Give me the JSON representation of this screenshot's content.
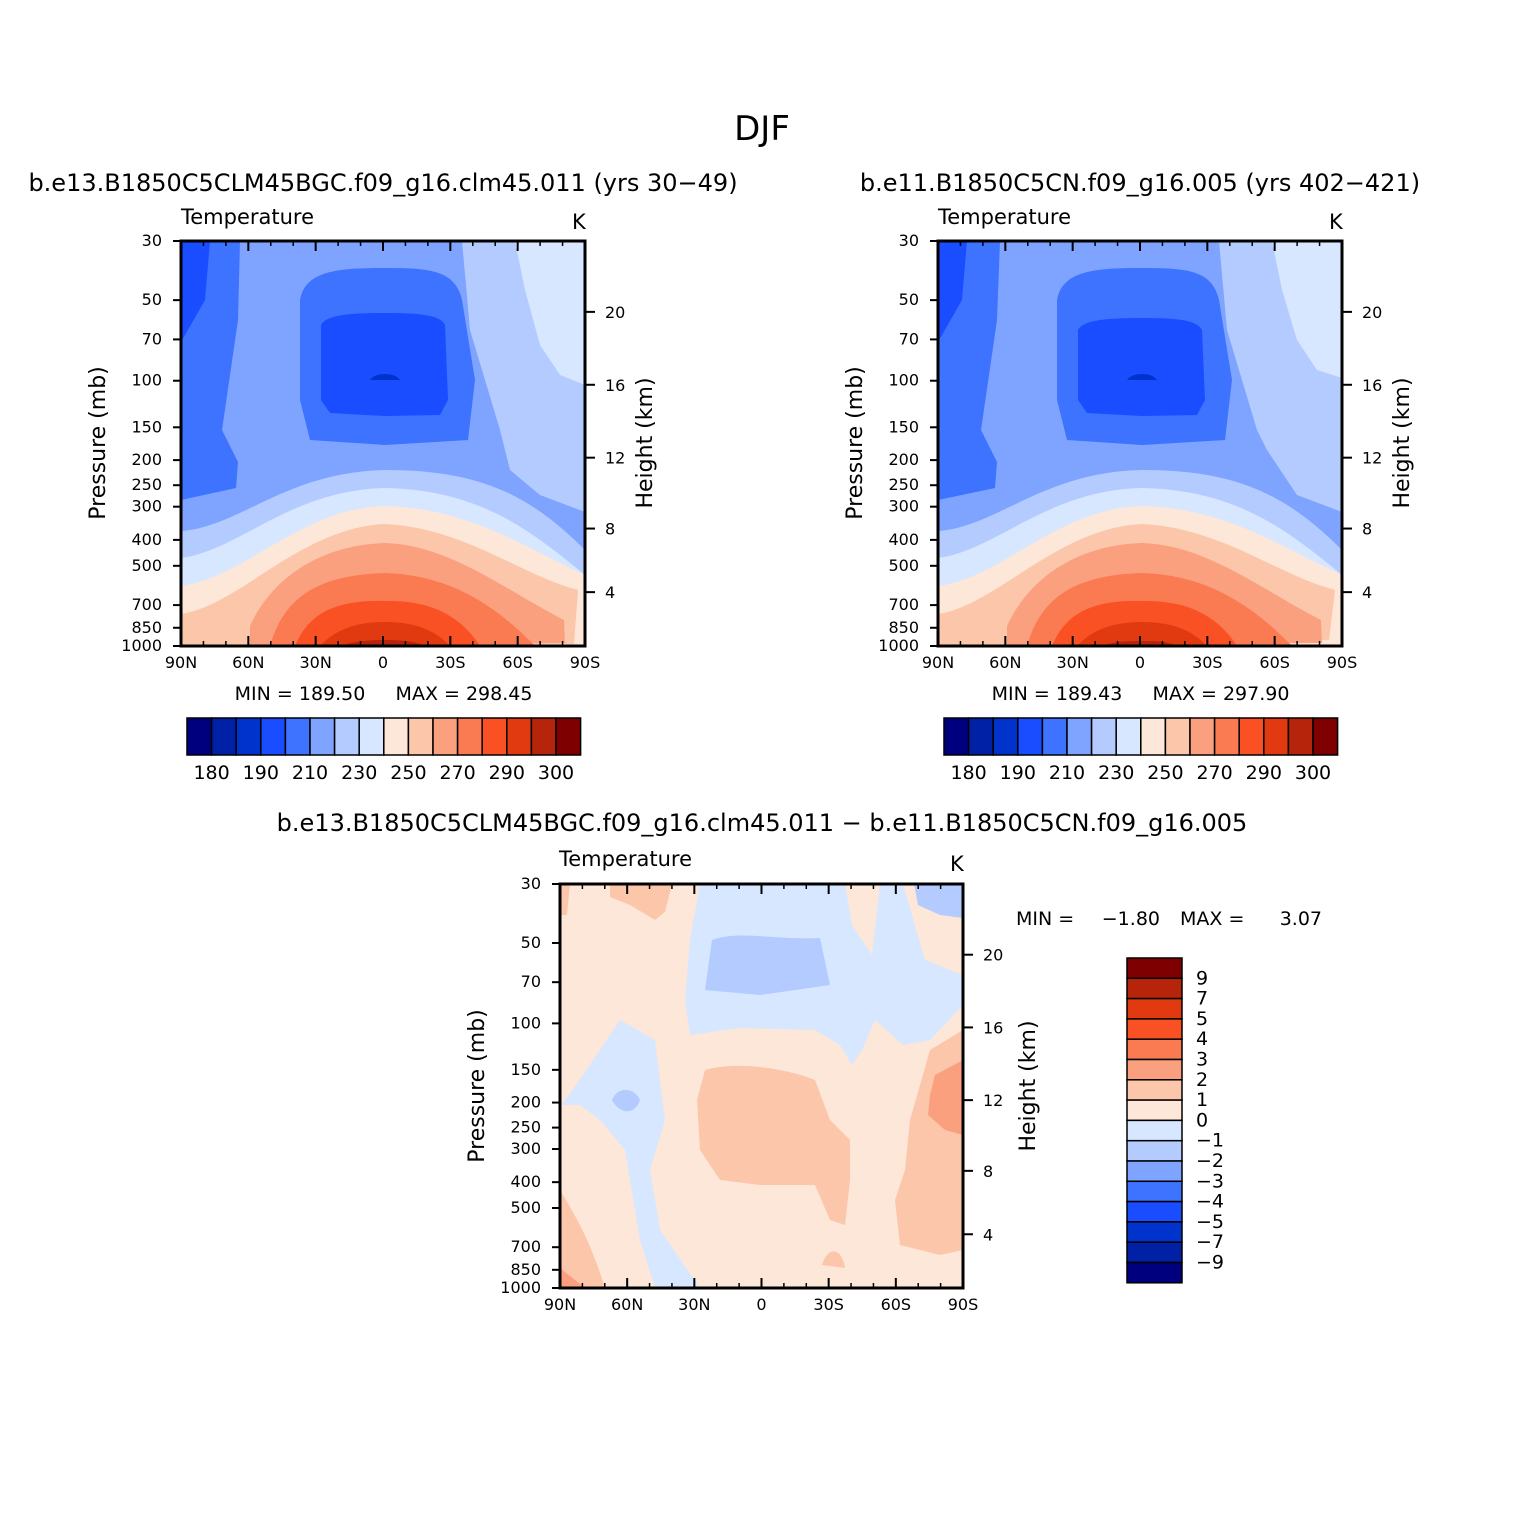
{
  "figure": {
    "title": "DJF",
    "palette_label": [
      "#00007f",
      "#0021a6",
      "#0033cc",
      "#1a4dff",
      "#3d73ff",
      "#7ea4ff",
      "#b3cbff",
      "#d6e7ff",
      "#fde7d8",
      "#fcc6ab",
      "#fba07e",
      "#fa7b52",
      "#fa5124",
      "#e23a10",
      "#b6240b",
      "#7f0000"
    ]
  },
  "chart_data": [
    {
      "type": "heatmap",
      "id": "panel1",
      "subtitle": "b.e13.B1850C5CLM45BGC.f09_g16.clm45.011 (yrs 30−49)",
      "variable": "Temperature",
      "units": "K",
      "xlabel": "",
      "ylabel": "Pressure (mb)",
      "y2label": "Height (km)",
      "x_ticks": [
        "90N",
        "60N",
        "30N",
        "0",
        "30S",
        "60S",
        "90S"
      ],
      "y_ticks": [
        "30",
        "50",
        "70",
        "100",
        "150",
        "200",
        "250",
        "300",
        "400",
        "500",
        "700",
        "850",
        "1000"
      ],
      "y2_ticks": [
        "20",
        "16",
        "12",
        "8",
        "4"
      ],
      "min_label": "MIN = 189.50",
      "max_label": "MAX = 298.45",
      "colorbar_labels": [
        "180",
        "190",
        "210",
        "230",
        "250",
        "270",
        "290",
        "300"
      ]
    },
    {
      "type": "heatmap",
      "id": "panel2",
      "subtitle": "b.e11.B1850C5CN.f09_g16.005 (yrs 402−421)",
      "variable": "Temperature",
      "units": "K",
      "xlabel": "",
      "ylabel": "Pressure (mb)",
      "y2label": "Height (km)",
      "x_ticks": [
        "90N",
        "60N",
        "30N",
        "0",
        "30S",
        "60S",
        "90S"
      ],
      "y_ticks": [
        "30",
        "50",
        "70",
        "100",
        "150",
        "200",
        "250",
        "300",
        "400",
        "500",
        "700",
        "850",
        "1000"
      ],
      "y2_ticks": [
        "20",
        "16",
        "12",
        "8",
        "4"
      ],
      "min_label": "MIN = 189.43",
      "max_label": "MAX = 297.90",
      "colorbar_labels": [
        "180",
        "190",
        "210",
        "230",
        "250",
        "270",
        "290",
        "300"
      ]
    },
    {
      "type": "heatmap",
      "id": "diff",
      "subtitle": "b.e13.B1850C5CLM45BGC.f09_g16.clm45.011 − b.e11.B1850C5CN.f09_g16.005",
      "variable": "Temperature",
      "units": "K",
      "xlabel": "",
      "ylabel": "Pressure (mb)",
      "y2label": "Height (km)",
      "x_ticks": [
        "90N",
        "60N",
        "30N",
        "0",
        "30S",
        "60S",
        "90S"
      ],
      "y_ticks": [
        "30",
        "50",
        "70",
        "100",
        "150",
        "200",
        "250",
        "300",
        "400",
        "500",
        "700",
        "850",
        "1000"
      ],
      "y2_ticks": [
        "20",
        "16",
        "12",
        "8",
        "4"
      ],
      "min_label": "MIN =",
      "min_value": "−1.80",
      "max_label": "MAX =",
      "max_value": "3.07",
      "colorbar_labels": [
        "9",
        "7",
        "5",
        "4",
        "3",
        "2",
        "1",
        "0",
        "−1",
        "−2",
        "−3",
        "−4",
        "−5",
        "−7",
        "−9"
      ]
    }
  ]
}
